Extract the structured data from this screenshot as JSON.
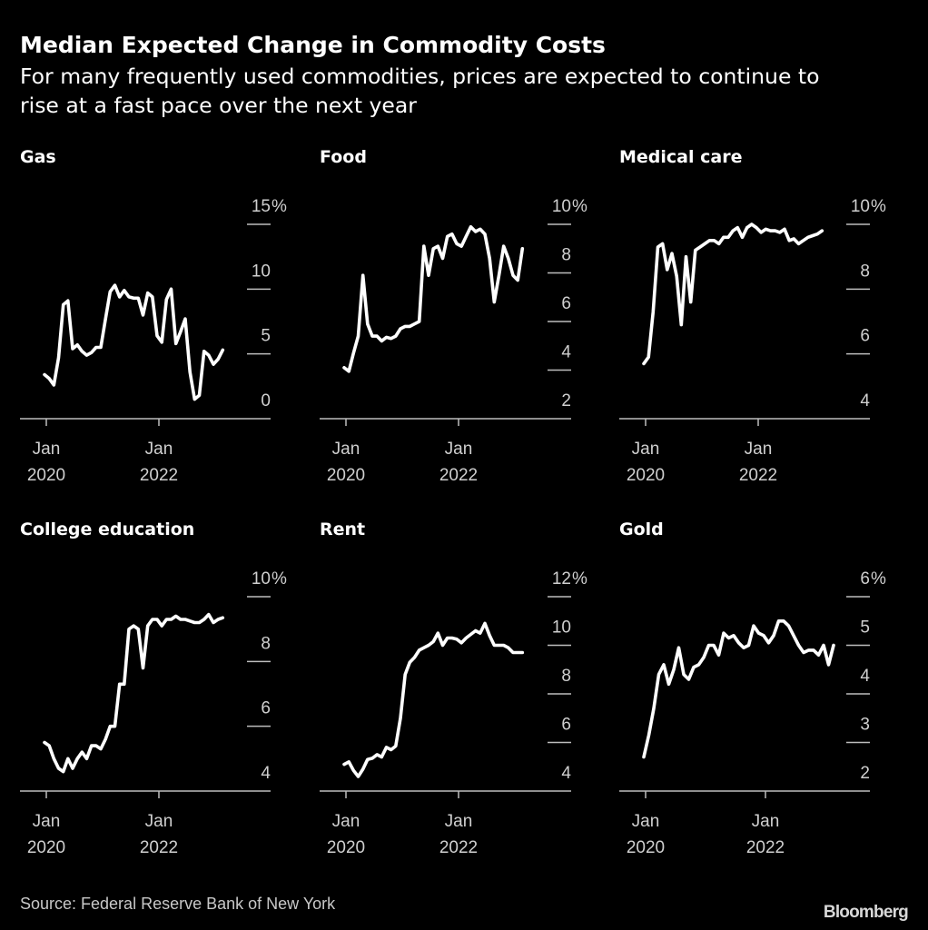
{
  "header": {
    "title": "Median Expected Change in Commodity Costs",
    "subtitle_lines": [
      "For many frequently used commodities, prices are expected to continue to",
      "rise at a fast pace over the next year"
    ]
  },
  "footer": {
    "source": "Source: Federal Reserve Bank of New York",
    "logo": "Bloomberg"
  },
  "colors": {
    "background": "#000000",
    "line": "#ffffff",
    "grid": "#bdbdbd",
    "text": "#cfcfcf"
  },
  "chart_data": [
    {
      "type": "line",
      "title": "Gas",
      "x_start": "Jan 2020",
      "frequency": "monthly",
      "x_ticks": [
        {
          "line1": "Jan",
          "line2": "2020",
          "month_index": 0
        },
        {
          "line1": "Jan",
          "line2": "2022",
          "month_index": 24
        }
      ],
      "y_ticks": [
        0,
        5,
        10,
        15
      ],
      "y_unit": "%",
      "ylim": [
        0,
        15
      ],
      "values": [
        3.4,
        3.1,
        2.6,
        4.7,
        8.8,
        9.1,
        5.4,
        5.7,
        5.2,
        4.9,
        5.1,
        5.5,
        5.5,
        7.7,
        9.8,
        10.3,
        9.4,
        9.9,
        9.4,
        9.3,
        9.3,
        8.0,
        9.7,
        9.4,
        6.4,
        5.9,
        9.2,
        10.0,
        5.8,
        6.7,
        7.7,
        3.6,
        1.5,
        1.8,
        5.2,
        4.9,
        4.2,
        4.6,
        5.3
      ]
    },
    {
      "type": "line",
      "title": "Food",
      "x_start": "Jan 2020",
      "frequency": "monthly",
      "x_ticks": [
        {
          "line1": "Jan",
          "line2": "2020",
          "month_index": 0
        },
        {
          "line1": "Jan",
          "line2": "2022",
          "month_index": 24
        }
      ],
      "y_ticks": [
        2,
        4,
        6,
        8,
        10
      ],
      "y_unit": "%",
      "ylim": [
        2,
        10
      ],
      "values": [
        4.1,
        3.95,
        4.7,
        5.4,
        7.9,
        5.9,
        5.4,
        5.4,
        5.2,
        5.35,
        5.3,
        5.4,
        5.7,
        5.8,
        5.8,
        5.9,
        6.0,
        9.1,
        7.9,
        9.0,
        9.1,
        8.6,
        9.5,
        9.6,
        9.2,
        9.1,
        9.5,
        9.9,
        9.7,
        9.8,
        9.6,
        8.6,
        6.8,
        7.9,
        9.1,
        8.6,
        7.9,
        7.7,
        9.0
      ]
    },
    {
      "type": "line",
      "title": "Medical care",
      "x_start": "Jan 2020",
      "frequency": "monthly",
      "x_ticks": [
        {
          "line1": "Jan",
          "line2": "2020",
          "month_index": 0
        },
        {
          "line1": "Jan",
          "line2": "2022",
          "month_index": 24
        }
      ],
      "y_ticks": [
        4,
        6,
        8,
        10
      ],
      "y_unit": "%",
      "ylim": [
        4,
        10
      ],
      "values": [
        5.7,
        5.9,
        7.3,
        9.3,
        9.4,
        8.6,
        9.1,
        8.4,
        6.9,
        9.0,
        7.6,
        9.2,
        9.3,
        9.4,
        9.5,
        9.5,
        9.4,
        9.6,
        9.6,
        9.8,
        9.9,
        9.6,
        9.9,
        10.0,
        9.9,
        9.75,
        9.85,
        9.8,
        9.8,
        9.75,
        9.85,
        9.5,
        9.55,
        9.4,
        9.5,
        9.6,
        9.65,
        9.7,
        9.8
      ]
    },
    {
      "type": "line",
      "title": "College education",
      "x_start": "Jan 2020",
      "frequency": "monthly",
      "x_ticks": [
        {
          "line1": "Jan",
          "line2": "2020",
          "month_index": 0
        },
        {
          "line1": "Jan",
          "line2": "2022",
          "month_index": 24
        }
      ],
      "y_ticks": [
        4,
        6,
        8,
        10
      ],
      "y_unit": "%",
      "ylim": [
        4,
        10
      ],
      "values": [
        5.5,
        5.4,
        5.0,
        4.7,
        4.6,
        5.0,
        4.7,
        5.0,
        5.2,
        5.0,
        5.4,
        5.4,
        5.3,
        5.6,
        6.0,
        6.0,
        7.3,
        7.3,
        9.0,
        9.1,
        9.0,
        7.8,
        9.1,
        9.3,
        9.3,
        9.1,
        9.3,
        9.3,
        9.4,
        9.3,
        9.3,
        9.25,
        9.2,
        9.2,
        9.3,
        9.45,
        9.2,
        9.3,
        9.35
      ]
    },
    {
      "type": "line",
      "title": "Rent",
      "x_start": "Jan 2020",
      "frequency": "monthly",
      "x_ticks": [
        {
          "line1": "Jan",
          "line2": "2020",
          "month_index": 0
        },
        {
          "line1": "Jan",
          "line2": "2022",
          "month_index": 24
        }
      ],
      "y_ticks": [
        4,
        6,
        8,
        10,
        12
      ],
      "y_unit": "%",
      "ylim": [
        4,
        12
      ],
      "values": [
        5.1,
        5.2,
        4.85,
        4.6,
        4.9,
        5.3,
        5.35,
        5.5,
        5.4,
        5.8,
        5.7,
        5.85,
        7.0,
        8.8,
        9.3,
        9.5,
        9.8,
        9.9,
        10.0,
        10.15,
        10.5,
        10.0,
        10.3,
        10.3,
        10.25,
        10.1,
        10.3,
        10.45,
        10.6,
        10.5,
        10.9,
        10.4,
        10.0,
        10.0,
        10.0,
        9.9,
        9.7,
        9.7,
        9.7
      ]
    },
    {
      "type": "line",
      "title": "Gold",
      "x_start": "Jan 2020",
      "frequency": "monthly",
      "x_ticks": [
        {
          "line1": "Jan",
          "line2": "2020",
          "month_index": 0
        },
        {
          "line1": "Jan",
          "line2": "2022",
          "month_index": 24
        }
      ],
      "y_ticks": [
        2,
        3,
        4,
        5,
        6
      ],
      "y_unit": "%",
      "ylim": [
        2,
        6
      ],
      "values": [
        2.7,
        3.15,
        3.7,
        4.4,
        4.6,
        4.2,
        4.5,
        4.95,
        4.4,
        4.3,
        4.55,
        4.6,
        4.75,
        5.0,
        5.0,
        4.8,
        5.25,
        5.15,
        5.2,
        5.05,
        4.95,
        5.0,
        5.4,
        5.25,
        5.2,
        5.05,
        5.2,
        5.5,
        5.5,
        5.4,
        5.2,
        5.0,
        4.85,
        4.9,
        4.9,
        4.8,
        5.0,
        4.6,
        5.0
      ]
    }
  ]
}
